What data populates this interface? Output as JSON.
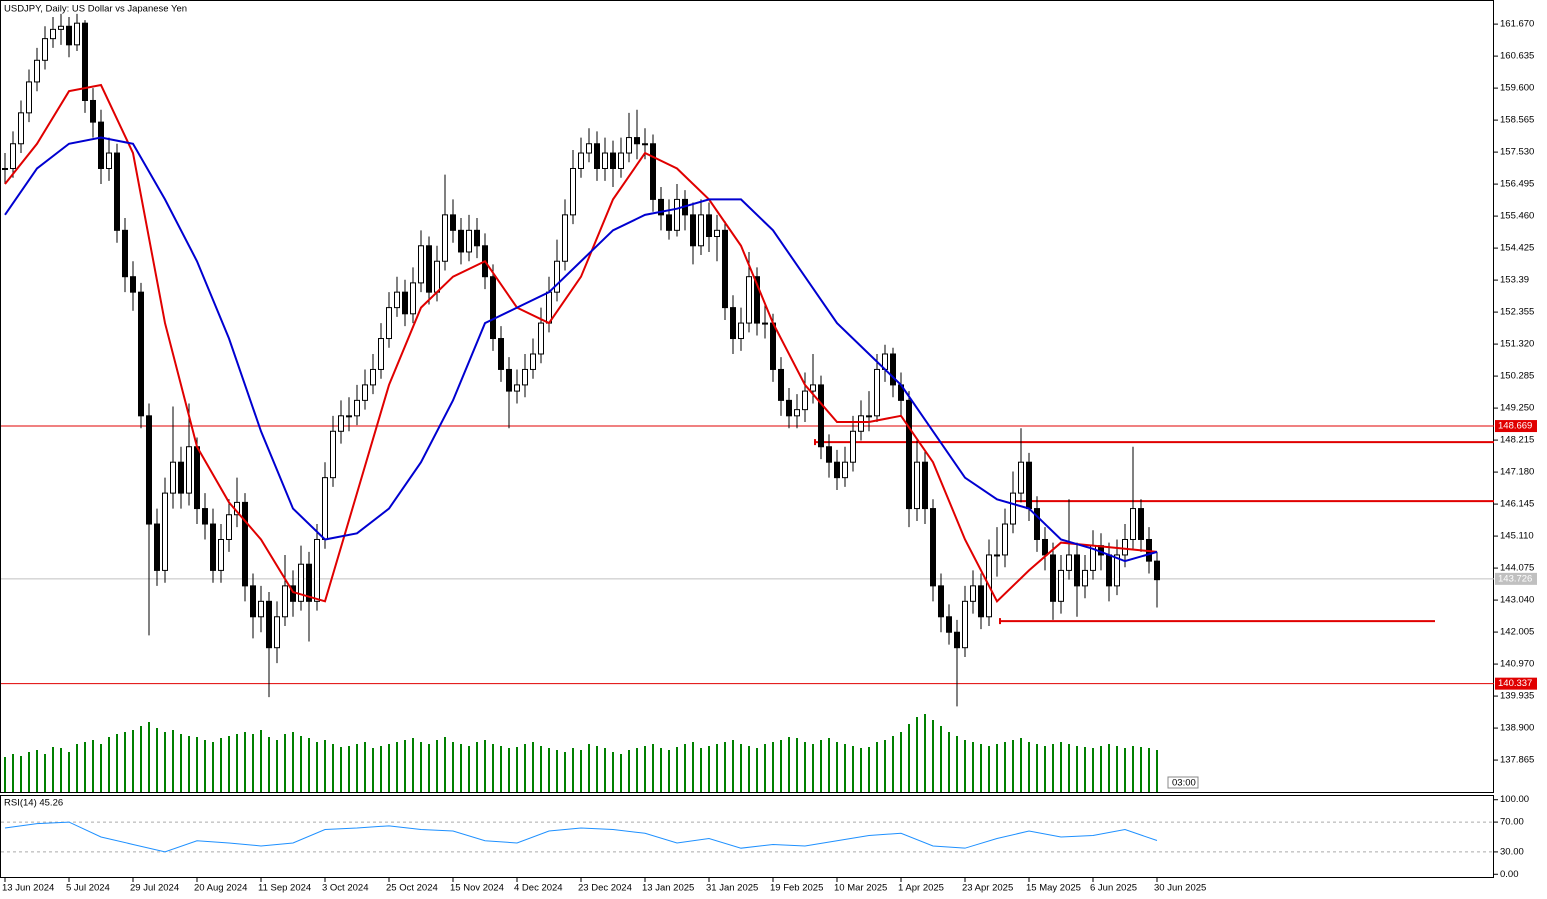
{
  "chart_data": {
    "type": "candlestick",
    "title": "USDJPY, Daily:  US Dollar vs Japanese Yen",
    "countdown": "03:00",
    "ylim": [
      136.8,
      162.45
    ],
    "yticks": [
      {
        "value": 161.67,
        "label": "161.670"
      },
      160.635,
      {
        "value": 159.6,
        "label": "159.600"
      },
      158.565,
      {
        "value": 157.53,
        "label": "157.530"
      },
      156.495,
      {
        "value": 155.46,
        "label": "155.460"
      },
      154.425,
      153.39,
      152.355,
      {
        "value": 151.32,
        "label": "151.320"
      },
      150.285,
      {
        "value": 149.25,
        "label": "149.250"
      },
      148.215,
      {
        "value": 147.18,
        "label": "147.180"
      },
      146.145,
      {
        "value": 145.11,
        "label": "145.110"
      },
      144.075,
      {
        "value": 143.04,
        "label": "143.040"
      },
      142.005,
      {
        "value": 140.97,
        "label": "140.970"
      },
      139.935,
      {
        "value": 138.9,
        "label": "138.900"
      },
      137.865
    ],
    "xticks": [
      {
        "value": 0,
        "label": "13 Jun 2024"
      },
      {
        "value": 8,
        "label": "5 Jul 2024"
      },
      {
        "value": 16,
        "label": "29 Jul 2024"
      },
      {
        "value": 24,
        "label": "20 Aug 2024"
      },
      {
        "value": 32,
        "label": "11 Sep 2024"
      },
      {
        "value": 40,
        "label": "3 Oct 2024"
      },
      {
        "value": 48,
        "label": "25 Oct 2024"
      },
      {
        "value": 56,
        "label": "15 Nov 2024"
      },
      {
        "value": 64,
        "label": "4 Dec 2024"
      },
      {
        "value": 72,
        "label": "23 Dec 2024"
      },
      {
        "value": 80,
        "label": "13 Jan 2025"
      },
      {
        "value": 88,
        "label": "31 Jan 2025"
      },
      {
        "value": 96,
        "label": "19 Feb 2025"
      },
      {
        "value": 104,
        "label": "10 Mar 2025"
      },
      {
        "value": 112,
        "label": "1 Apr 2025"
      },
      {
        "value": 120,
        "label": "23 Apr 2025"
      },
      {
        "value": 128,
        "label": "15 May 2025"
      },
      {
        "value": 136,
        "label": "6 Jun 2025"
      },
      {
        "value": 144,
        "label": "30 Jun 2025"
      }
    ],
    "close": [
      157.0,
      157.8,
      158.8,
      159.8,
      160.5,
      161.2,
      161.5,
      161.6,
      161.0,
      161.7,
      159.2,
      158.5,
      157.0,
      157.5,
      155.0,
      153.5,
      153.0,
      149.0,
      145.5,
      144.0,
      146.5,
      147.5,
      146.5,
      148.0,
      146.0,
      145.5,
      144.0,
      145.0,
      145.8,
      146.2,
      143.5,
      142.5,
      143.0,
      141.5,
      142.5,
      143.5,
      143.0,
      144.2,
      143.0,
      145.0,
      147.0,
      148.5,
      149.0,
      149.0,
      149.5,
      150.0,
      150.5,
      151.5,
      152.5,
      153.0,
      152.3,
      153.3,
      154.5,
      153.0,
      154.0,
      155.5,
      155.0,
      154.3,
      155.0,
      154.5,
      153.5,
      151.5,
      150.5,
      149.8,
      150.0,
      150.5,
      151.0,
      152.0,
      153.0,
      154.0,
      155.5,
      157.0,
      157.5,
      157.8,
      157.0,
      157.5,
      157.0,
      157.5,
      158.0,
      157.8,
      157.8,
      156.0,
      155.5,
      155.0,
      156.0,
      155.5,
      154.5,
      155.5,
      154.8,
      155.0,
      152.5,
      151.5,
      152.0,
      153.5,
      152.0,
      152.0,
      150.5,
      149.5,
      149.0,
      149.2,
      149.8,
      150.0,
      148.0,
      147.5,
      147.0,
      147.5,
      148.5,
      149.0,
      149.0,
      150.5,
      151.0,
      150.0,
      149.5,
      146.0,
      147.5,
      146.0,
      143.5,
      142.5,
      142.0,
      141.5,
      143.0,
      143.5,
      142.5,
      144.5,
      144.5,
      145.5,
      146.5,
      147.5,
      146.0,
      145.0,
      144.5,
      143.0,
      144.0,
      144.5,
      143.5,
      144.0,
      144.8,
      144.5,
      143.5,
      144.5,
      145.0,
      146.0,
      145.0,
      144.3,
      143.7
    ],
    "high": [
      157.5,
      158.2,
      159.2,
      160.2,
      160.9,
      161.6,
      161.9,
      162.0,
      161.9,
      162.0,
      161.8,
      159.6,
      158.9,
      158.0,
      157.8,
      155.4,
      154.0,
      153.3,
      149.4,
      146.0,
      147.0,
      149.3,
      148.0,
      149.4,
      148.3,
      146.5,
      146.0,
      145.5,
      146.3,
      147.0,
      146.5,
      143.9,
      143.5,
      143.3,
      143.0,
      144.5,
      144.0,
      144.8,
      144.6,
      145.5,
      147.5,
      149.0,
      149.5,
      149.6,
      150.0,
      150.5,
      151.0,
      152.0,
      153.0,
      153.5,
      153.4,
      153.8,
      155.0,
      154.8,
      154.5,
      156.8,
      156.0,
      155.4,
      155.5,
      155.4,
      154.9,
      153.9,
      151.9,
      150.9,
      150.5,
      151.0,
      151.5,
      152.5,
      153.5,
      154.7,
      156.0,
      157.6,
      158.0,
      158.3,
      158.2,
      158.0,
      157.9,
      158.0,
      158.8,
      158.9,
      158.3,
      158.1,
      156.4,
      156.0,
      156.5,
      156.3,
      155.9,
      156.0,
      155.9,
      155.5,
      155.3,
      152.9,
      152.5,
      154.3,
      153.8,
      152.6,
      152.3,
      150.9,
      149.9,
      149.7,
      150.4,
      151.0,
      150.3,
      148.4,
      147.9,
      148.0,
      149.0,
      149.5,
      149.8,
      151.0,
      151.3,
      151.2,
      150.4,
      149.8,
      148.2,
      147.9,
      146.3,
      143.9,
      142.9,
      142.4,
      143.5,
      144.0,
      143.9,
      145.0,
      145.4,
      146.0,
      147.2,
      148.6,
      147.8,
      146.4,
      145.4,
      144.9,
      144.5,
      146.3,
      144.9,
      144.5,
      145.3,
      145.2,
      144.9,
      145.0,
      145.5,
      148.0,
      146.3,
      145.4,
      144.6
    ],
    "low": [
      156.5,
      156.7,
      157.5,
      158.5,
      159.5,
      160.2,
      160.9,
      161.0,
      160.6,
      160.8,
      158.8,
      158.0,
      156.5,
      156.6,
      154.6,
      153.0,
      152.4,
      148.6,
      141.9,
      143.5,
      143.6,
      146.0,
      146.0,
      146.1,
      145.5,
      145.0,
      143.6,
      143.6,
      144.6,
      145.4,
      143.0,
      141.8,
      142.0,
      139.9,
      141.0,
      142.2,
      142.5,
      142.7,
      141.7,
      142.7,
      144.7,
      146.7,
      148.1,
      148.5,
      148.7,
      149.2,
      149.7,
      150.2,
      151.2,
      152.2,
      151.9,
      152.0,
      153.0,
      152.6,
      152.7,
      153.7,
      154.6,
      153.9,
      154.0,
      154.1,
      153.1,
      151.1,
      150.1,
      148.6,
      149.4,
      149.6,
      150.2,
      150.7,
      151.7,
      152.7,
      153.7,
      155.2,
      156.7,
      157.2,
      156.6,
      156.6,
      156.4,
      156.7,
      157.2,
      157.3,
      157.3,
      155.6,
      155.0,
      154.7,
      154.8,
      155.0,
      153.9,
      154.2,
      154.3,
      154.0,
      152.1,
      151.0,
      151.1,
      151.7,
      151.6,
      151.5,
      150.1,
      149.0,
      148.6,
      148.6,
      148.8,
      149.4,
      147.6,
      147.0,
      146.6,
      146.7,
      147.2,
      148.2,
      148.5,
      148.8,
      150.1,
      149.6,
      149.0,
      145.4,
      145.6,
      145.5,
      143.0,
      142.0,
      141.6,
      139.6,
      141.2,
      142.6,
      142.1,
      142.2,
      143.8,
      144.1,
      145.2,
      146.2,
      145.6,
      144.6,
      144.0,
      142.4,
      142.6,
      143.7,
      142.5,
      143.1,
      143.7,
      144.0,
      143.0,
      143.2,
      144.1,
      144.7,
      144.6,
      143.9,
      142.8
    ],
    "volume": [
      35,
      38,
      36,
      40,
      42,
      38,
      45,
      44,
      40,
      48,
      50,
      52,
      48,
      55,
      58,
      60,
      62,
      66,
      70,
      64,
      60,
      62,
      58,
      56,
      55,
      52,
      50,
      54,
      56,
      58,
      60,
      58,
      62,
      55,
      52,
      58,
      60,
      56,
      54,
      50,
      52,
      48,
      45,
      46,
      48,
      50,
      44,
      46,
      48,
      50,
      52,
      54,
      50,
      48,
      52,
      55,
      50,
      48,
      46,
      50,
      52,
      48,
      46,
      44,
      45,
      48,
      50,
      46,
      44,
      42,
      40,
      44,
      42,
      48,
      46,
      44,
      40,
      38,
      42,
      44,
      46,
      48,
      44,
      42,
      45,
      48,
      50,
      44,
      46,
      48,
      50,
      52,
      48,
      46,
      44,
      48,
      50,
      52,
      55,
      54,
      50,
      48,
      52,
      54,
      50,
      48,
      46,
      44,
      45,
      50,
      52,
      56,
      60,
      68,
      75,
      78,
      72,
      66,
      60,
      56,
      52,
      50,
      48,
      46,
      48,
      50,
      52,
      54,
      50,
      48,
      46,
      48,
      50,
      48,
      46,
      45,
      44,
      46,
      48,
      46,
      44,
      46,
      45,
      44,
      42
    ],
    "volume_color": "#008000",
    "moving_averages": [
      {
        "color": "#e00000",
        "x": [
          0,
          4,
          8,
          12,
          16,
          20,
          24,
          28,
          32,
          36,
          40,
          44,
          48,
          52,
          56,
          60,
          64,
          68,
          72,
          76,
          80,
          84,
          88,
          92,
          96,
          100,
          104,
          108,
          112,
          116,
          120,
          124,
          128,
          132,
          136,
          140,
          144
        ],
        "values": [
          156.5,
          157.8,
          159.5,
          159.7,
          157.5,
          152.0,
          148.0,
          146.2,
          145.0,
          143.3,
          143.0,
          146.5,
          150.0,
          152.5,
          153.5,
          154.0,
          152.5,
          152.0,
          153.5,
          156.0,
          157.5,
          157.0,
          156.0,
          154.5,
          152.0,
          150.0,
          148.8,
          148.8,
          149.0,
          147.5,
          145.0,
          143.0,
          144.0,
          144.9,
          144.8,
          144.7,
          144.6
        ]
      },
      {
        "color": "#0000d0",
        "x": [
          0,
          4,
          8,
          12,
          16,
          20,
          24,
          28,
          32,
          36,
          40,
          44,
          48,
          52,
          56,
          60,
          64,
          68,
          72,
          76,
          80,
          84,
          88,
          92,
          96,
          100,
          104,
          108,
          112,
          116,
          120,
          124,
          128,
          132,
          136,
          140,
          144
        ],
        "values": [
          155.5,
          157.0,
          157.8,
          158.0,
          157.8,
          156.0,
          154.0,
          151.5,
          148.5,
          146.0,
          145.0,
          145.2,
          146.0,
          147.5,
          149.5,
          152.0,
          152.5,
          153.0,
          154.0,
          155.0,
          155.5,
          155.7,
          156.0,
          156.0,
          155.0,
          153.5,
          152.0,
          151.0,
          150.0,
          148.5,
          147.0,
          146.3,
          146.0,
          145.0,
          144.7,
          144.3,
          144.6
        ]
      }
    ],
    "levels": [
      {
        "value": 148.669,
        "color": "#e00000"
      },
      {
        "value": 140.337,
        "color": "#e00000"
      },
      {
        "value": 143.726,
        "color": "#c0c0c0"
      }
    ],
    "segments": [
      {
        "value": 148.15,
        "color": "#e00000"
      },
      {
        "value": 146.24,
        "color": "#e00000"
      },
      {
        "value": 142.36,
        "color": "#e00000"
      }
    ],
    "rsi": {
      "title": "RSI(14) 45.26",
      "color": "#1e90ff",
      "ylim": [
        -5,
        105
      ],
      "yticks": [
        {
          "value": 100,
          "label": "100.00"
        },
        {
          "value": 70,
          "label": "70.00"
        },
        {
          "value": 30,
          "label": "30.00"
        },
        {
          "value": 0,
          "label": "0.00"
        }
      ],
      "levels": [
        70,
        30
      ],
      "x": [
        0,
        4,
        8,
        12,
        16,
        20,
        24,
        28,
        32,
        36,
        40,
        44,
        48,
        52,
        56,
        60,
        64,
        68,
        72,
        76,
        80,
        84,
        88,
        92,
        96,
        100,
        104,
        108,
        112,
        116,
        120,
        124,
        128,
        132,
        136,
        140,
        144
      ],
      "values": [
        62,
        68,
        70,
        50,
        40,
        30,
        45,
        42,
        38,
        42,
        60,
        62,
        65,
        60,
        58,
        45,
        42,
        58,
        62,
        60,
        55,
        42,
        48,
        35,
        40,
        38,
        45,
        52,
        55,
        38,
        35,
        48,
        58,
        50,
        52,
        60,
        45.26
      ]
    }
  }
}
